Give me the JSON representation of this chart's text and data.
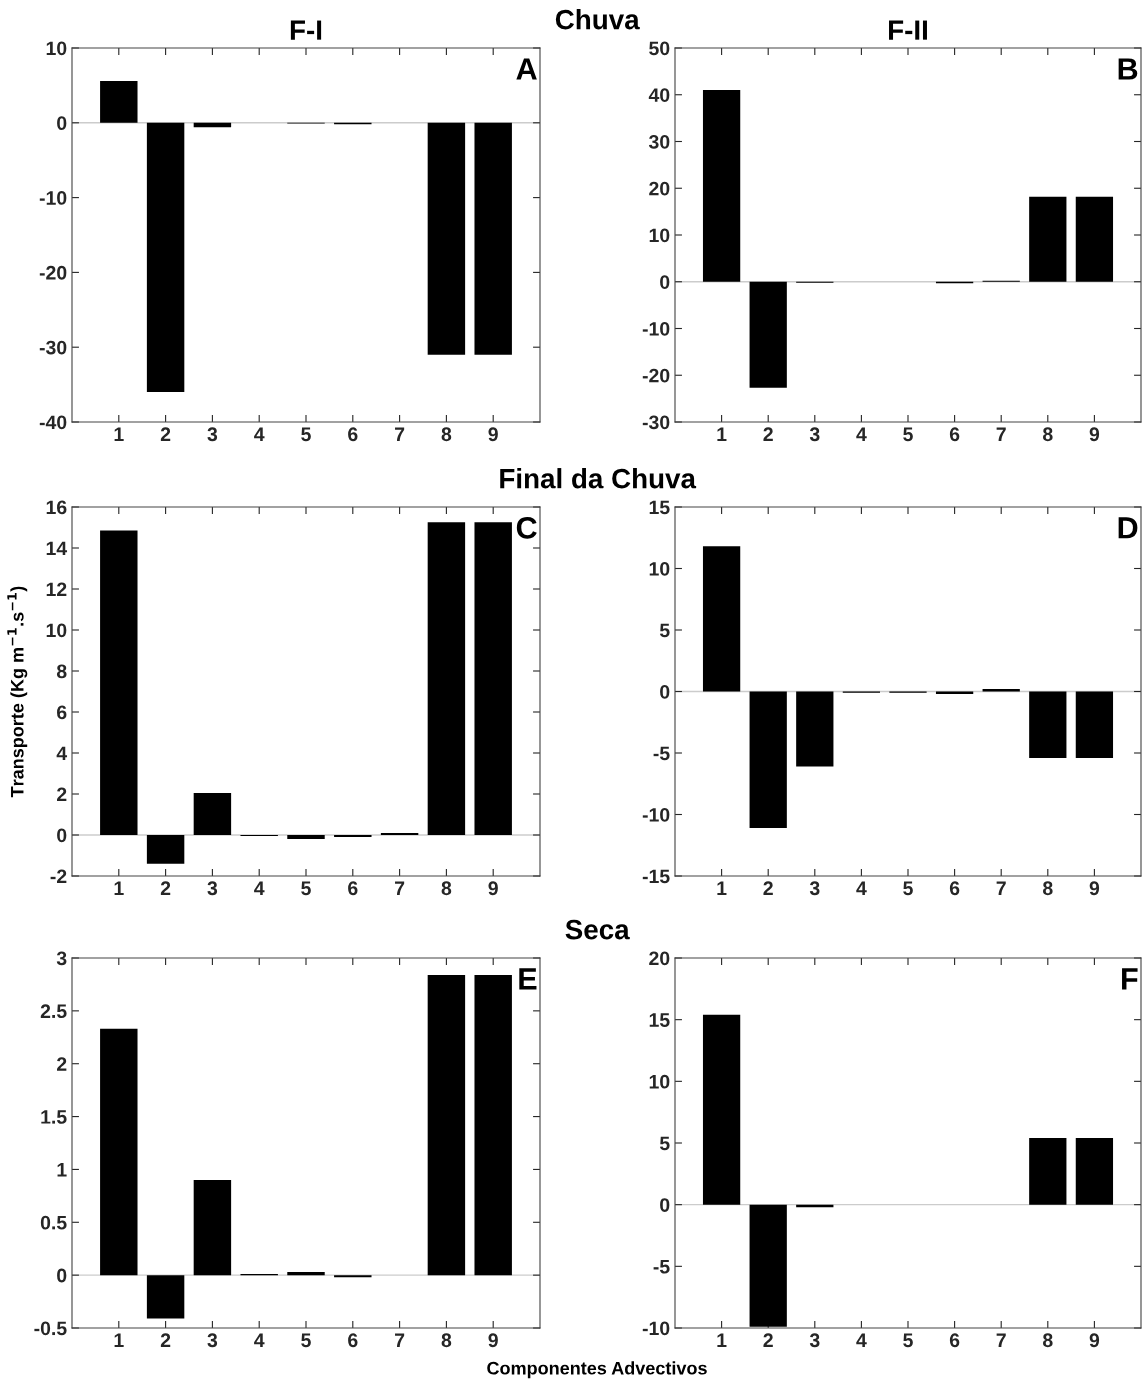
{
  "chart_data": [
    {
      "type": "bar",
      "title": "F-I",
      "annotations": [
        "A"
      ],
      "categories": [
        "1",
        "2",
        "3",
        "4",
        "5",
        "6",
        "7",
        "8",
        "9"
      ],
      "values": [
        5.6,
        -36,
        -0.6,
        0,
        -0.1,
        -0.2,
        0,
        -31,
        -31
      ],
      "color": "#000000",
      "ylim": [
        -40,
        10
      ],
      "yticks": [
        -40,
        -30,
        -20,
        -10,
        0,
        10
      ],
      "ref_lines": [
        {
          "axis": "y",
          "value": 0,
          "color": "#cccccc"
        }
      ],
      "grid": false,
      "legend": false
    },
    {
      "type": "bar",
      "title": "F-II",
      "annotations": [
        "B"
      ],
      "categories": [
        "1",
        "2",
        "3",
        "4",
        "5",
        "6",
        "7",
        "8",
        "9"
      ],
      "values": [
        41,
        -22.7,
        -0.2,
        0,
        0,
        -0.3,
        0.2,
        18.2,
        18.2
      ],
      "color": "#000000",
      "ylim": [
        -30,
        50
      ],
      "yticks": [
        -30,
        -20,
        -10,
        0,
        10,
        20,
        30,
        40,
        50
      ],
      "ref_lines": [
        {
          "axis": "y",
          "value": 0,
          "color": "#cccccc"
        }
      ],
      "grid": false,
      "legend": false
    },
    {
      "type": "bar",
      "ylabel": "Transporte (Kg m$^{−1}$.s$^{−1}$)",
      "annotations": [
        "C"
      ],
      "categories": [
        "1",
        "2",
        "3",
        "4",
        "5",
        "6",
        "7",
        "8",
        "9"
      ],
      "values": [
        14.85,
        -1.4,
        2.05,
        -0.05,
        -0.2,
        -0.1,
        0.1,
        15.25,
        15.25
      ],
      "color": "#000000",
      "ylim": [
        -2,
        16
      ],
      "yticks": [
        -2,
        0,
        2,
        4,
        6,
        8,
        10,
        12,
        14,
        16
      ],
      "ref_lines": [
        {
          "axis": "y",
          "value": 0,
          "color": "#cccccc"
        }
      ],
      "grid": false,
      "legend": false
    },
    {
      "type": "bar",
      "annotations": [
        "D"
      ],
      "categories": [
        "1",
        "2",
        "3",
        "4",
        "5",
        "6",
        "7",
        "8",
        "9"
      ],
      "values": [
        11.8,
        -11.1,
        -6.1,
        -0.1,
        -0.1,
        -0.2,
        0.2,
        -5.4,
        -5.4
      ],
      "color": "#000000",
      "ylim": [
        -15,
        15
      ],
      "yticks": [
        -15,
        -10,
        -5,
        0,
        5,
        10,
        15
      ],
      "ref_lines": [
        {
          "axis": "y",
          "value": 0,
          "color": "#cccccc"
        }
      ],
      "grid": false,
      "legend": false
    },
    {
      "type": "bar",
      "xlabel": "Componentes Advectivos",
      "annotations": [
        "E"
      ],
      "categories": [
        "1",
        "2",
        "3",
        "4",
        "5",
        "6",
        "7",
        "8",
        "9"
      ],
      "values": [
        2.33,
        -0.41,
        0.9,
        0.01,
        0.03,
        -0.02,
        0,
        2.84,
        2.84
      ],
      "color": "#000000",
      "ylim": [
        -0.5,
        3
      ],
      "yticks": [
        -0.5,
        0,
        0.5,
        1,
        1.5,
        2,
        2.5,
        3
      ],
      "ref_lines": [
        {
          "axis": "y",
          "value": 0,
          "color": "#cccccc"
        }
      ],
      "grid": false,
      "legend": false
    },
    {
      "type": "bar",
      "annotations": [
        "F"
      ],
      "categories": [
        "1",
        "2",
        "3",
        "4",
        "5",
        "6",
        "7",
        "8",
        "9"
      ],
      "values": [
        15.4,
        -9.9,
        -0.2,
        0,
        0,
        0,
        0,
        5.4,
        5.4
      ],
      "color": "#000000",
      "ylim": [
        -10,
        20
      ],
      "yticks": [
        -10,
        -5,
        0,
        5,
        10,
        15,
        20
      ],
      "ref_lines": [
        {
          "axis": "y",
          "value": 0,
          "color": "#cccccc"
        }
      ],
      "grid": false,
      "legend": false
    },
    {
      "type": "other",
      "annotations": [
        "Chuva",
        "Final da Chuva",
        "Seca"
      ]
    }
  ]
}
